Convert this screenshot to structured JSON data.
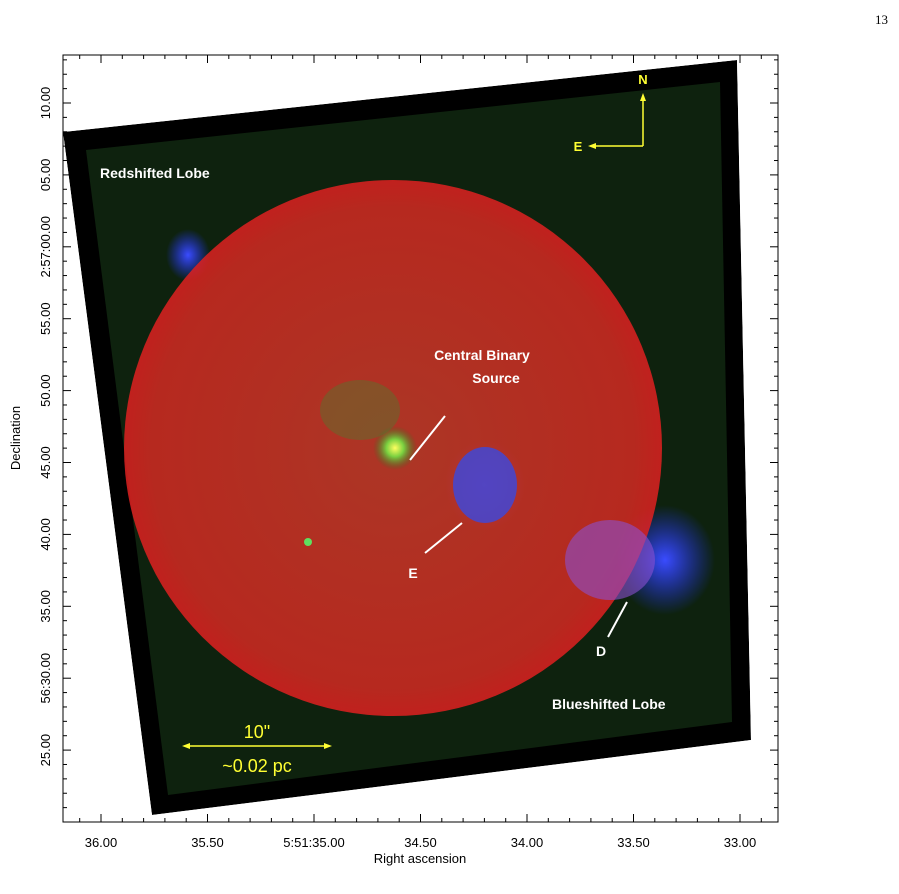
{
  "page_number": "13",
  "figure": {
    "x_axis": {
      "label": "Right ascension",
      "tick_labels": [
        "36.00",
        "35.50",
        "5:51:35.00",
        "34.50",
        "34.00",
        "33.50",
        "33.00"
      ]
    },
    "y_axis": {
      "label": "Declination",
      "tick_labels": [
        "10.00",
        "05.00",
        "2:57:00.00",
        "55.00",
        "50.00",
        "45.00",
        "40.00",
        "35.00",
        "56:30.00",
        "25.00"
      ]
    },
    "annotations": {
      "redshifted": "Redshifted Lobe",
      "blueshifted": "Blueshifted Lobe",
      "central_line1": "Central Binary",
      "central_line2": "Source",
      "e": "E",
      "d": "D"
    },
    "compass": {
      "north": "N",
      "east": "E"
    },
    "scale_bar": {
      "angular": "10\"",
      "physical": "~0.02 pc"
    }
  }
}
